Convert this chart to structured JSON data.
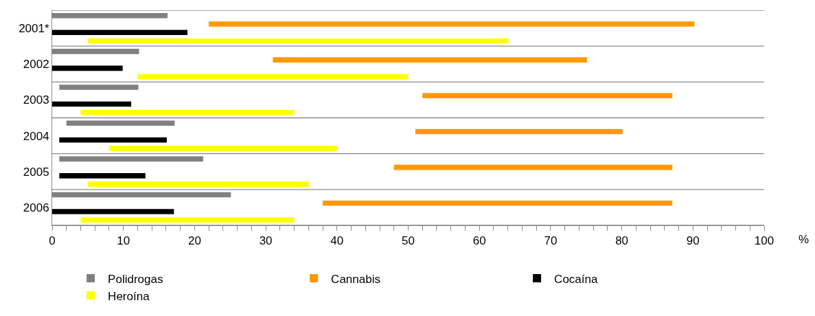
{
  "chart_data": {
    "type": "bar",
    "orientation": "horizontal",
    "xlabel": "%",
    "categories": [
      "2001*",
      "2002",
      "2003",
      "2004",
      "2005",
      "2006"
    ],
    "series": [
      {
        "name": "Polidrogas",
        "color": "#808080",
        "base": [
          0,
          0,
          1,
          2,
          1,
          0
        ],
        "values": [
          16.2,
          12.2,
          11.1,
          15.2,
          20.2,
          25.1
        ]
      },
      {
        "name": "Cannabis",
        "color": "#ff9900",
        "base": [
          22,
          31,
          52,
          51,
          48,
          38
        ],
        "values": [
          68.2,
          44.1,
          35.1,
          29.1,
          39.1,
          49.1
        ]
      },
      {
        "name": "Cocaína",
        "color": "#000000",
        "base": [
          0,
          0,
          0,
          1,
          1,
          0
        ],
        "values": [
          19,
          9.9,
          11.1,
          15.1,
          12.1,
          17.1
        ]
      },
      {
        "name": "Heroína",
        "color": "#ffff00",
        "base": [
          5,
          12,
          4,
          8,
          5,
          4
        ],
        "values": [
          59.1,
          38,
          30,
          32,
          31.1,
          30
        ]
      }
    ],
    "xlim": [
      0,
      100
    ],
    "xticks": [
      0,
      {
        "value": 2,
        "label": null
      },
      {
        "value": 4,
        "label": null
      },
      {
        "value": 6,
        "label": null
      },
      {
        "value": 8,
        "label": null
      },
      10,
      {
        "value": 12,
        "label": null
      },
      {
        "value": 14,
        "label": null
      },
      {
        "value": 16,
        "label": null
      },
      {
        "value": 18,
        "label": null
      },
      20,
      {
        "value": 22,
        "label": null
      },
      {
        "value": 24,
        "label": null
      },
      {
        "value": 26,
        "label": null
      },
      {
        "value": 28,
        "label": null
      },
      30,
      {
        "value": 32,
        "label": null
      },
      {
        "value": 34,
        "label": null
      },
      {
        "value": 36,
        "label": null
      },
      {
        "value": 38,
        "label": null
      },
      40,
      {
        "value": 42,
        "label": null
      },
      {
        "value": 44,
        "label": null
      },
      {
        "value": 46,
        "label": null
      },
      {
        "value": 48,
        "label": null
      },
      50,
      {
        "value": 52,
        "label": null
      },
      {
        "value": 54,
        "label": null
      },
      {
        "value": 56,
        "label": null
      },
      {
        "value": 58,
        "label": null
      },
      60,
      {
        "value": 62,
        "label": null
      },
      {
        "value": 64,
        "label": null
      },
      {
        "value": 66,
        "label": null
      },
      {
        "value": 68,
        "label": null
      },
      70,
      {
        "value": 72,
        "label": null
      },
      {
        "value": 74,
        "label": null
      },
      {
        "value": 76,
        "label": null
      },
      {
        "value": 78,
        "label": null
      },
      80,
      {
        "value": 82,
        "label": null
      },
      {
        "value": 84,
        "label": null
      },
      {
        "value": 86,
        "label": null
      },
      {
        "value": 88,
        "label": null
      },
      90,
      {
        "value": 92,
        "label": null
      },
      {
        "value": 94,
        "label": null
      },
      {
        "value": 96,
        "label": null
      },
      {
        "value": 98,
        "label": null
      },
      100
    ],
    "grid": "y",
    "legend": "bottom"
  }
}
